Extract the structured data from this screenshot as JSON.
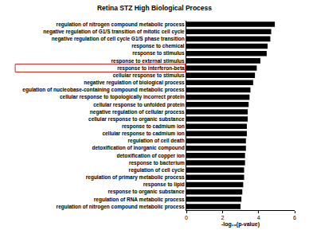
{
  "chart_data": {
    "type": "bar",
    "orientation": "horizontal",
    "title": "Retina STZ High Biological Process",
    "x_label": "-log₁₀(p-value)",
    "categories": [
      "regulation of nitrogen compound metabolic process",
      "negative regulation of G1/S transition of mitotic cell cycle",
      "negative regulation of cell cycle G1/S phase transition",
      "response to chemical",
      "response to stimulus",
      "response to external stimulus",
      "response to interferon-beta",
      "cellular response to stimulus",
      "negative regulation of biological process",
      "egulation of nucleobase-containing compound metabolic process",
      "cellular response to topologically incorrect protein",
      "cellular response to unfolded protein",
      "negative regulation of cellular process",
      "cellular response to organic substance",
      "response to cadmium ion",
      "cellular response to cadmium ion",
      "regulation of cell death",
      "detoxification of inorganic compound",
      "detoxification of copper ion",
      "response to bacterium",
      "regulation of cell cycle",
      "regulation of primary metabolic process",
      "response to lipid",
      "response to organic substance",
      "regulation of RNA metabolic process",
      "regulation of nitrogen compound metabolic process"
    ],
    "values": [
      4.9,
      4.7,
      4.65,
      4.5,
      4.45,
      4.1,
      3.9,
      3.8,
      3.7,
      3.55,
      3.5,
      3.45,
      3.4,
      3.4,
      3.35,
      3.35,
      3.3,
      3.3,
      3.25,
      3.25,
      3.2,
      3.2,
      3.15,
      3.1,
      3.05,
      3.0
    ],
    "color": "#000000",
    "xlim": [
      0,
      6
    ],
    "xticks": [
      0,
      2,
      4,
      6
    ],
    "grid": false,
    "annotations": [
      {
        "category": "response to interferon-beta",
        "style": "box",
        "color": "#e0201b"
      }
    ]
  }
}
